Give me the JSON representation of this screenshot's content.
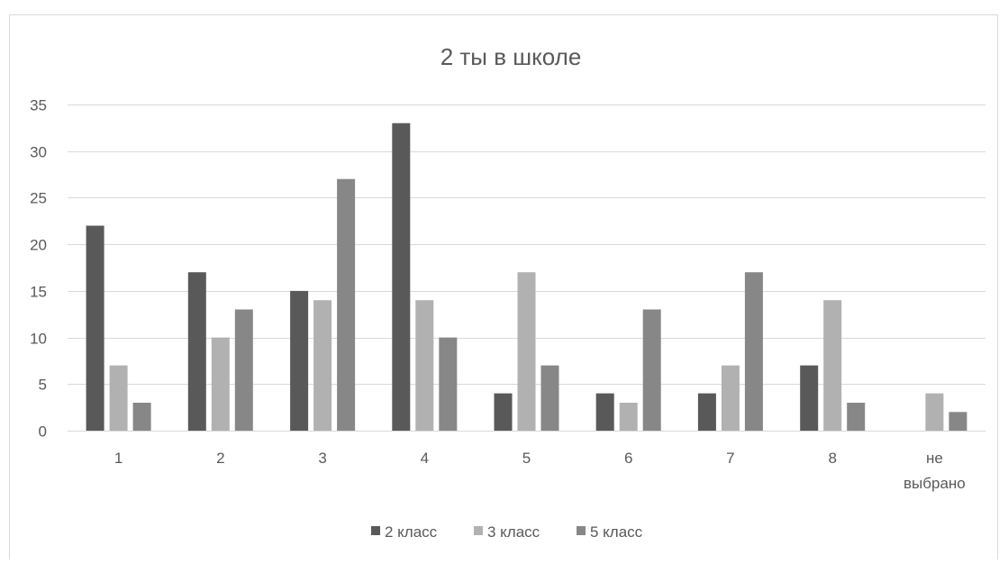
{
  "chart_data": {
    "type": "bar",
    "title": "2 ты в школе",
    "xlabel": "",
    "ylabel": "",
    "categories": [
      "1",
      "2",
      "3",
      "4",
      "5",
      "6",
      "7",
      "8",
      "не выбрано"
    ],
    "category_lines": [
      [
        "1"
      ],
      [
        "2"
      ],
      [
        "3"
      ],
      [
        "4"
      ],
      [
        "5"
      ],
      [
        "6"
      ],
      [
        "7"
      ],
      [
        "8"
      ],
      [
        "не",
        "выбрано"
      ]
    ],
    "series": [
      {
        "name": "2 класс",
        "color": "#595959",
        "values": [
          22,
          17,
          15,
          33,
          4,
          4,
          4,
          7,
          0
        ]
      },
      {
        "name": "3 класс",
        "color": "#b1b1b1",
        "values": [
          7,
          10,
          14,
          14,
          17,
          3,
          7,
          14,
          4
        ]
      },
      {
        "name": "5 класс",
        "color": "#878787",
        "values": [
          3,
          13,
          27,
          10,
          7,
          13,
          17,
          3,
          2
        ]
      }
    ],
    "ylim": [
      0,
      35
    ],
    "yticks": [
      "0",
      "5",
      "10",
      "15",
      "20",
      "25",
      "30",
      "35"
    ],
    "grid": true,
    "legend_position": "bottom"
  }
}
